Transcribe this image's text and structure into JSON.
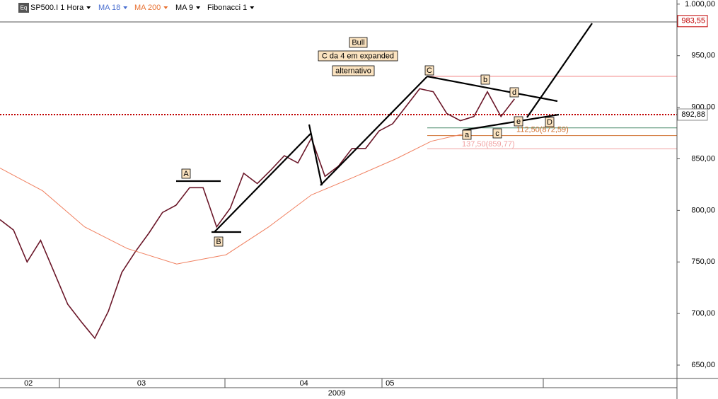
{
  "toolbar": {
    "icon": "Eq",
    "items": [
      {
        "text": "SP500.I 1 Hora",
        "color": "#000000"
      },
      {
        "text": "MA 18",
        "color": "#4a6fd0"
      },
      {
        "text": "MA 200",
        "color": "#e87030"
      },
      {
        "text": "MA 9",
        "color": "#000000"
      },
      {
        "text": "Fibonacci 1",
        "color": "#000000"
      }
    ]
  },
  "chart_data": {
    "type": "line",
    "xlim": [
      0,
      100
    ],
    "ylim": [
      637,
      1004
    ],
    "yticks": [
      {
        "value": 1000,
        "label": "1.000,00"
      },
      {
        "value": 950,
        "label": "950,00"
      },
      {
        "value": 900,
        "label": "900,00"
      },
      {
        "value": 850,
        "label": "850,00"
      },
      {
        "value": 800,
        "label": "800,00"
      },
      {
        "value": 750,
        "label": "750,00"
      },
      {
        "value": 700,
        "label": "700,00"
      },
      {
        "value": 650,
        "label": "650,00"
      }
    ],
    "xticks": [
      {
        "value": 4.2,
        "label": "02"
      },
      {
        "value": 20.9,
        "label": "03"
      },
      {
        "value": 44.9,
        "label": "04"
      },
      {
        "value": 57.6,
        "label": "05"
      }
    ],
    "year": "2009",
    "series": [
      {
        "color": "#6a1628",
        "x": [
          0,
          2,
          4,
          6,
          8,
          10,
          12,
          14,
          16,
          18,
          20,
          22,
          24,
          26,
          28,
          30,
          32,
          34,
          36,
          38,
          40,
          42,
          44,
          46,
          48,
          50,
          52,
          54,
          56,
          58,
          60,
          62,
          64,
          66,
          68,
          70,
          72,
          74,
          76
        ],
        "values": [
          791,
          781,
          750,
          771,
          740,
          709,
          692,
          676,
          702,
          740,
          760,
          778,
          798,
          805,
          822,
          822,
          784,
          802,
          836,
          826,
          839,
          853,
          846,
          870,
          833,
          843,
          860,
          860,
          877,
          884,
          901,
          918,
          915,
          894,
          887,
          891,
          915,
          891,
          908
        ]
      },
      {
        "color": "#f08060",
        "x": [
          0,
          6.3,
          12.5,
          18.8,
          26.1,
          33.4,
          39.7,
          46,
          52.2,
          58.5,
          63.7,
          69
        ],
        "values": [
          841,
          819,
          784,
          763,
          748,
          757,
          784,
          815,
          832,
          850,
          867,
          875
        ]
      }
    ],
    "levels": [
      {
        "value": 892.88,
        "label": "892,88",
        "color": "#c00000",
        "style": "dotted"
      },
      {
        "value": 983.55,
        "label": "983,55",
        "color": "#c00000",
        "style": "box"
      },
      {
        "value": 930,
        "color": "#f08080",
        "style": "solid"
      },
      {
        "value": 880,
        "color": "#4a8a6a",
        "style": "solid"
      },
      {
        "value": 872.59,
        "label": "112,50(872,59)",
        "color": "#d07030",
        "style": "solid"
      },
      {
        "value": 859.77,
        "label": "137,50(859,77)",
        "color": "#f0a0a0",
        "style": "solid"
      }
    ],
    "annotations": [
      "Bull",
      "C da 4 em expanded",
      "alternativo"
    ],
    "wave_labels": [
      "A",
      "B",
      "C",
      "a",
      "b",
      "c",
      "d",
      "e",
      "D"
    ]
  }
}
